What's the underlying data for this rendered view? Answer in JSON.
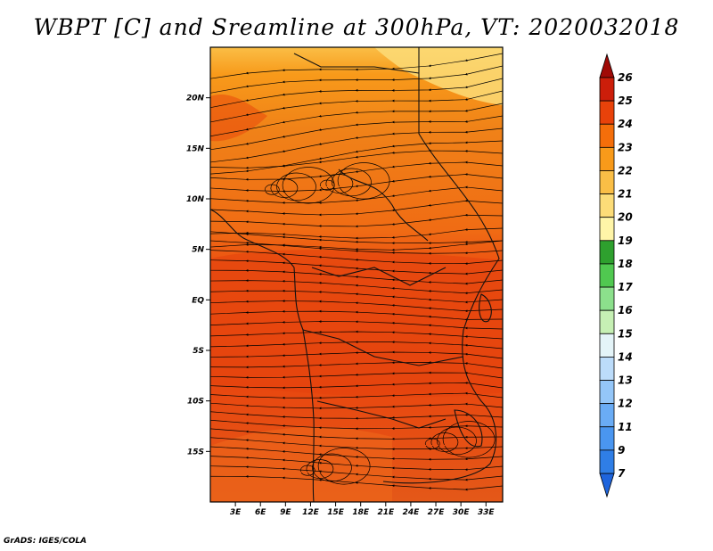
{
  "chart_data": {
    "type": "heatmap",
    "title": "WBPT [C] and Sreamline at 300hPa, VT: 2020032018",
    "variable": "WBPT [C]",
    "overlay": "Streamline",
    "level": "300hPa",
    "valid_time": "2020032018",
    "xlabel": "",
    "ylabel": "",
    "xlim": [
      0,
      35
    ],
    "ylim": [
      -20,
      25
    ],
    "x_ticks": [
      {
        "value": 3,
        "label": "3E"
      },
      {
        "value": 6,
        "label": "6E"
      },
      {
        "value": 9,
        "label": "9E"
      },
      {
        "value": 12,
        "label": "12E"
      },
      {
        "value": 15,
        "label": "15E"
      },
      {
        "value": 18,
        "label": "18E"
      },
      {
        "value": 21,
        "label": "21E"
      },
      {
        "value": 24,
        "label": "24E"
      },
      {
        "value": 27,
        "label": "27E"
      },
      {
        "value": 30,
        "label": "30E"
      },
      {
        "value": 33,
        "label": "33E"
      }
    ],
    "y_ticks": [
      {
        "value": 20,
        "label": "20N"
      },
      {
        "value": 15,
        "label": "15N"
      },
      {
        "value": 10,
        "label": "10N"
      },
      {
        "value": 5,
        "label": "5N"
      },
      {
        "value": 0,
        "label": "EQ"
      },
      {
        "value": -5,
        "label": "5S"
      },
      {
        "value": -10,
        "label": "10S"
      },
      {
        "value": -15,
        "label": "15S"
      }
    ],
    "colorbar": {
      "levels": [
        "7",
        "9",
        "11",
        "12",
        "13",
        "14",
        "15",
        "16",
        "17",
        "18",
        "19",
        "20",
        "21",
        "22",
        "23",
        "24",
        "25",
        "26"
      ],
      "colors": [
        "#1e64dc",
        "#2f7ee6",
        "#4a96f0",
        "#6aacf5",
        "#94c6f8",
        "#bcdcfa",
        "#e4f4f8",
        "#c6f0b4",
        "#8ce08c",
        "#50c850",
        "#2ea02e",
        "#fff5a8",
        "#fcdc78",
        "#fabe46",
        "#f89a1a",
        "#f46e0a",
        "#e8420a",
        "#cc1e0a",
        "#a00a06"
      ]
    },
    "field_levels": {
      "north_band": 20,
      "north_mid": 22,
      "central": 23,
      "south": 24
    }
  },
  "footer": "GrADS: IGES/COLA"
}
